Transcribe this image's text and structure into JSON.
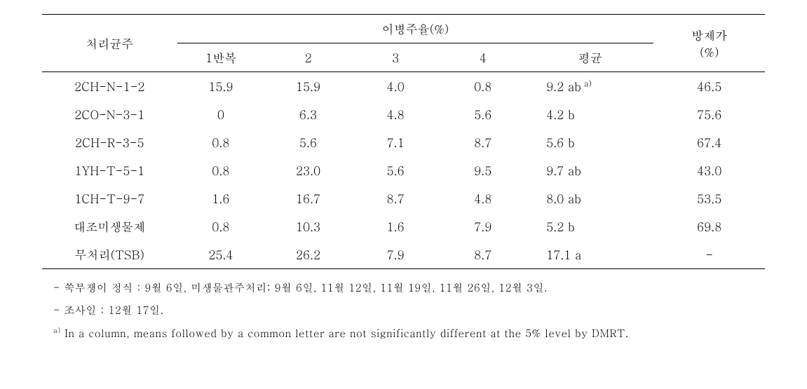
{
  "table": {
    "header": {
      "treatment": "처리균주",
      "disease_rate": "이병주율(%)",
      "control_value": "방제가",
      "control_unit": "(%)",
      "rep1": "1반복",
      "rep2": "2",
      "rep3": "3",
      "rep4": "4",
      "mean": "평균"
    },
    "rows": [
      {
        "treat": "2CH-N-1-2",
        "r1": "15.9",
        "r2": "15.9",
        "r3": "4.0",
        "r4": "0.8",
        "mean": "9.2 ab",
        "sup": "a)",
        "ctrl": "46.5"
      },
      {
        "treat": "2CO-N-3-1",
        "r1": "0",
        "r2": "6.3",
        "r3": "4.8",
        "r4": "5.6",
        "mean": "4.2 b",
        "sup": "",
        "ctrl": "75.6"
      },
      {
        "treat": "2CH-R-3-5",
        "r1": "0.8",
        "r2": "5.6",
        "r3": "7.1",
        "r4": "8.7",
        "mean": "5.6 b",
        "sup": "",
        "ctrl": "67.4"
      },
      {
        "treat": "1YH-T-5-1",
        "r1": "0.8",
        "r2": "23.0",
        "r3": "5.6",
        "r4": "9.5",
        "mean": "9.7 ab",
        "sup": "",
        "ctrl": "43.0"
      },
      {
        "treat": "1CH-T-9-7",
        "r1": "1.6",
        "r2": "16.7",
        "r3": "8.7",
        "r4": "4.8",
        "mean": "8.0 ab",
        "sup": "",
        "ctrl": "53.5"
      },
      {
        "treat": "대조미생물제",
        "r1": "0.8",
        "r2": "10.3",
        "r3": "1.6",
        "r4": "7.9",
        "mean": "5.2 b",
        "sup": "",
        "ctrl": "69.8"
      },
      {
        "treat": "무처리(TSB)",
        "r1": "25.4",
        "r2": "26.2",
        "r3": "7.9",
        "r4": "8.7",
        "mean": "17.1 a",
        "sup": "",
        "ctrl": "-"
      }
    ]
  },
  "footnotes": {
    "n1_prefix": "- ",
    "n1": "쑥부쟁이 정식 : 9월 6일, 미생물관주처리; 9월 6일, 11월 12일, 11월 19일, 11월 26일, 12월 3일.",
    "n2_prefix": "- ",
    "n2": "조사일 : 12월 17일.",
    "n3_sup": "a)",
    "n3": " In a column, means followed by a common letter are not  significantly different at the 5% level by DMRT."
  },
  "styling": {
    "font_family": "Batang, Times New Roman, serif",
    "font_size_body": 17,
    "font_size_footnote": 15,
    "border_color": "#000000",
    "top_border_width": 1.5,
    "thin_border_width": 1.0,
    "background_color": "#ffffff",
    "text_color": "#000000",
    "column_widths_pct": {
      "treat": 17,
      "rep": 11,
      "mean": 16,
      "control": 14
    }
  }
}
